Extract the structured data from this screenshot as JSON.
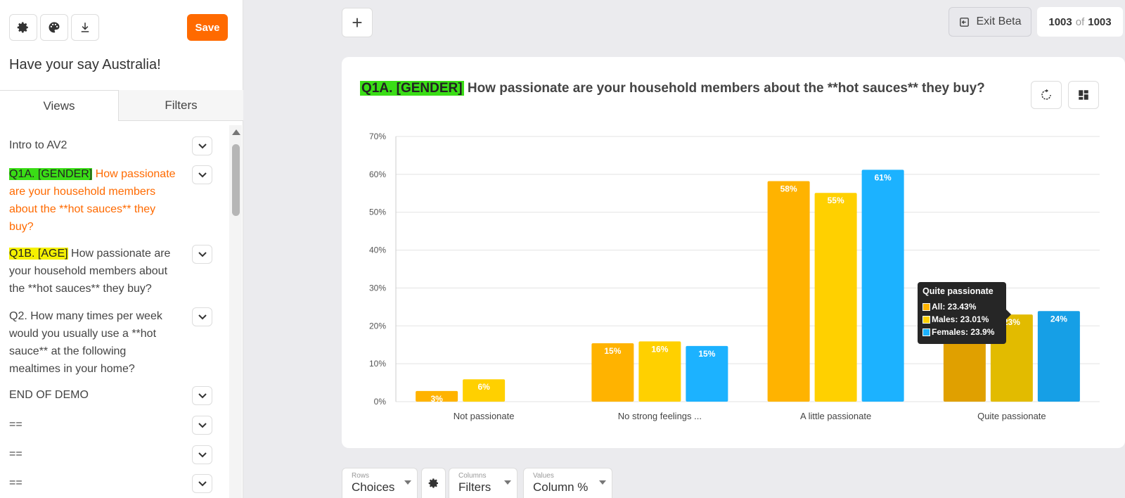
{
  "sidebar": {
    "save_label": "Save",
    "survey_title": "Have your say Australia!",
    "tabs": [
      "Views",
      "Filters"
    ],
    "items": [
      {
        "label": "Intro to AV2",
        "highlight": "",
        "rest": ""
      },
      {
        "label": "",
        "highlight": "Q1A. [GENDER]",
        "rest": " How passionate are your household members about the **hot sauces** they buy?"
      },
      {
        "label": "",
        "highlight": "Q1B. [AGE]",
        "rest": " How passionate are your household members about the **hot sauces** they buy?"
      },
      {
        "label": "Q2. How many times per week would you usually use a **hot sauce** at the following mealtimes in your home?",
        "highlight": "",
        "rest": ""
      },
      {
        "label": "END OF DEMO",
        "highlight": "",
        "rest": ""
      },
      {
        "label": "==",
        "highlight": "",
        "rest": ""
      },
      {
        "label": "==",
        "highlight": "",
        "rest": ""
      },
      {
        "label": "==",
        "highlight": "",
        "rest": ""
      }
    ],
    "icons": [
      "gear-icon",
      "palette-icon",
      "download-icon"
    ]
  },
  "topbar": {
    "add_label": "+",
    "exit_label": "Exit Beta",
    "count_current": "1003",
    "count_of": "of",
    "count_total": "1003"
  },
  "chart_header": {
    "highlight": "Q1A. [GENDER]",
    "title_rest": " How passionate are your household members about the **hot sauces** they buy?"
  },
  "tooltip": {
    "title": "Quite passionate",
    "rows": [
      "All: 23.43%",
      "Males: 23.01%",
      "Females: 23.9%"
    ]
  },
  "controls": {
    "rows_small": "Rows",
    "rows_value": "Choices",
    "cols_small": "Columns",
    "cols_value": "Filters",
    "vals_small": "Values",
    "vals_value": "Column %"
  },
  "colors": {
    "accent": "#ff6a00",
    "all": "#ffb300",
    "males": "#ffd000",
    "females": "#1cb2ff",
    "highlight_green": "#3add16",
    "highlight_yellow": "#f5f100"
  },
  "chart_data": {
    "type": "bar",
    "title": "Q1A. [GENDER] How passionate are your household members about the **hot sauces** they buy?",
    "categories": [
      "Not passionate",
      "No strong feelings ...",
      "A little passionate",
      "Quite passionate"
    ],
    "series": [
      {
        "name": "All",
        "values": [
          2.8,
          15.4,
          58.2,
          23.43
        ],
        "labels": [
          "3%",
          "15%",
          "58%",
          ""
        ],
        "color": "#ffb300"
      },
      {
        "name": "Males",
        "values": [
          5.9,
          15.9,
          55.1,
          23.01
        ],
        "labels": [
          "6%",
          "16%",
          "55%",
          "23%"
        ],
        "color": "#ffd000"
      },
      {
        "name": "Females",
        "values": [
          0,
          14.7,
          61.2,
          23.9
        ],
        "labels": [
          "",
          "15%",
          "61%",
          "24%"
        ],
        "color": "#1cb2ff"
      }
    ],
    "yticks": [
      "0%",
      "10%",
      "20%",
      "30%",
      "40%",
      "50%",
      "60%",
      "70%"
    ],
    "ylim": [
      0,
      70
    ],
    "grid": true,
    "hovered_category": "Quite passionate"
  }
}
